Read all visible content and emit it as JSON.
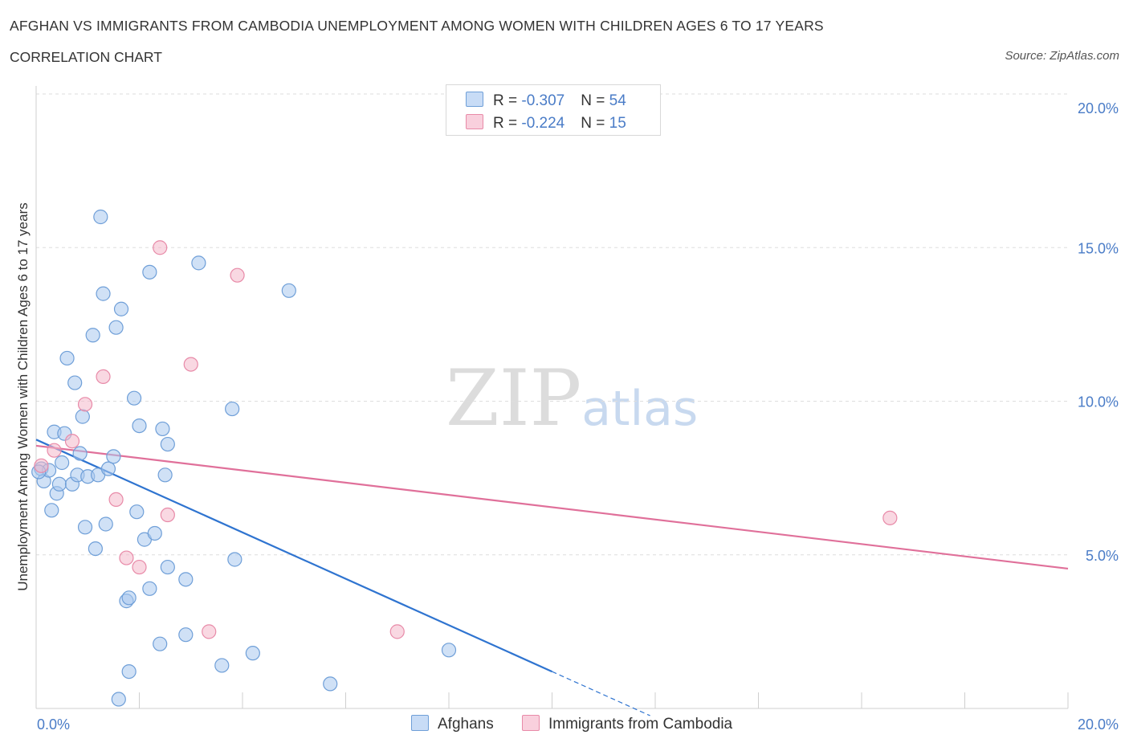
{
  "title": "AFGHAN VS IMMIGRANTS FROM CAMBODIA UNEMPLOYMENT AMONG WOMEN WITH CHILDREN AGES 6 TO 17 YEARS",
  "subtitle": "CORRELATION CHART",
  "source": "Source: ZipAtlas.com",
  "watermark": {
    "main": "ZIP",
    "accent": "atlas"
  },
  "legend_stats": [
    {
      "r_label": "R = ",
      "r_value": "-0.307",
      "n_label": "N = ",
      "n_value": "54",
      "color": "#a9c8ef"
    },
    {
      "r_label": "R = ",
      "r_value": "-0.224",
      "n_label": "N = ",
      "n_value": "15",
      "color": "#f4b8cb"
    }
  ],
  "chart_data": {
    "type": "scatter",
    "title": "AFGHAN VS IMMIGRANTS FROM CAMBODIA UNEMPLOYMENT AMONG WOMEN WITH CHILDREN AGES 6 TO 17 YEARS",
    "xlabel": "",
    "ylabel": "Unemployment Among Women with Children Ages 6 to 17 years",
    "xlim": [
      0,
      20
    ],
    "ylim": [
      0,
      20
    ],
    "x_tick_labels": [
      "0.0%",
      "20.0%"
    ],
    "y_ticks": [
      5,
      10,
      15,
      20
    ],
    "y_tick_labels": [
      "5.0%",
      "10.0%",
      "15.0%",
      "20.0%"
    ],
    "grid": true,
    "series": [
      {
        "name": "Afghans",
        "color": "#a9c8ef",
        "stroke": "#6f9fd8",
        "line_color": "#2f74d0",
        "trend": {
          "x0": 0,
          "y0": 8.75,
          "x1": 10,
          "y1": 1.2,
          "dash_to_x": 11.9
        },
        "points": [
          [
            0.1,
            7.8
          ],
          [
            0.15,
            7.4
          ],
          [
            0.25,
            7.75
          ],
          [
            0.3,
            6.45
          ],
          [
            0.35,
            9.0
          ],
          [
            0.4,
            7.0
          ],
          [
            0.45,
            7.3
          ],
          [
            0.5,
            8.0
          ],
          [
            0.55,
            8.95
          ],
          [
            0.6,
            11.4
          ],
          [
            0.7,
            7.3
          ],
          [
            0.75,
            10.6
          ],
          [
            0.8,
            7.6
          ],
          [
            0.85,
            8.3
          ],
          [
            0.9,
            9.5
          ],
          [
            0.95,
            5.9
          ],
          [
            1.0,
            7.55
          ],
          [
            1.1,
            12.15
          ],
          [
            1.15,
            5.2
          ],
          [
            1.2,
            7.6
          ],
          [
            1.25,
            16.0
          ],
          [
            1.3,
            13.5
          ],
          [
            1.35,
            6.0
          ],
          [
            1.4,
            7.8
          ],
          [
            1.5,
            8.2
          ],
          [
            1.55,
            12.4
          ],
          [
            1.65,
            13.0
          ],
          [
            1.75,
            3.5
          ],
          [
            1.8,
            3.6
          ],
          [
            1.8,
            1.2
          ],
          [
            1.9,
            10.1
          ],
          [
            1.95,
            6.4
          ],
          [
            2.0,
            9.2
          ],
          [
            2.1,
            5.5
          ],
          [
            2.2,
            3.9
          ],
          [
            2.2,
            14.2
          ],
          [
            2.3,
            5.7
          ],
          [
            2.4,
            2.1
          ],
          [
            2.45,
            9.1
          ],
          [
            2.5,
            7.6
          ],
          [
            2.55,
            4.6
          ],
          [
            2.55,
            8.6
          ],
          [
            2.9,
            2.4
          ],
          [
            2.9,
            4.2
          ],
          [
            3.15,
            14.5
          ],
          [
            3.6,
            1.4
          ],
          [
            3.8,
            9.75
          ],
          [
            3.85,
            4.85
          ],
          [
            4.2,
            1.8
          ],
          [
            4.9,
            13.6
          ],
          [
            5.7,
            0.8
          ],
          [
            8.0,
            1.9
          ],
          [
            1.6,
            0.3
          ],
          [
            0.05,
            7.7
          ]
        ]
      },
      {
        "name": "Immigrants from Cambodia",
        "color": "#f4b8cb",
        "stroke": "#e88aa8",
        "line_color": "#e0709a",
        "trend": {
          "x0": 0,
          "y0": 8.55,
          "x1": 20,
          "y1": 4.55
        },
        "points": [
          [
            0.1,
            7.9
          ],
          [
            0.35,
            8.4
          ],
          [
            0.7,
            8.7
          ],
          [
            0.95,
            9.9
          ],
          [
            1.3,
            10.8
          ],
          [
            1.55,
            6.8
          ],
          [
            1.75,
            4.9
          ],
          [
            2.0,
            4.6
          ],
          [
            2.4,
            15.0
          ],
          [
            2.55,
            6.3
          ],
          [
            3.0,
            11.2
          ],
          [
            3.35,
            2.5
          ],
          [
            3.9,
            14.1
          ],
          [
            7.0,
            2.5
          ],
          [
            16.55,
            6.2
          ]
        ]
      }
    ]
  }
}
